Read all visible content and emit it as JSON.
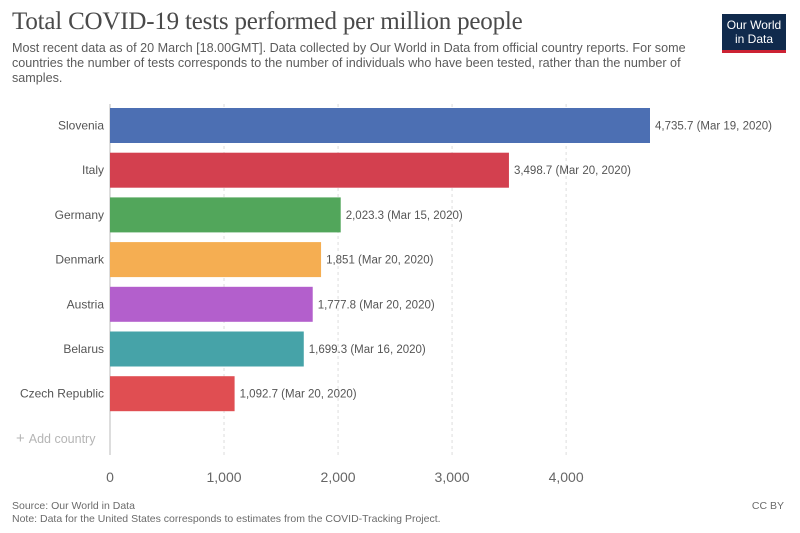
{
  "header": {
    "title": "Total COVID-19 tests performed per million people",
    "subtitle": "Most recent data as of 20 March [18.00GMT]. Data collected by Our World in Data from official country reports. For some countries the number of tests corresponds to the number of individuals who have been tested, rather than the number of samples."
  },
  "logo": {
    "line1": "Our World",
    "line2": "in Data"
  },
  "controls": {
    "add_country": "Add country"
  },
  "footer": {
    "source": "Source: Our World in Data",
    "note": "Note: Data for the United States corresponds to estimates from the COVID-Tracking Project.",
    "license": "CC BY"
  },
  "chart_data": {
    "type": "bar",
    "orientation": "horizontal",
    "title": "Total COVID-19 tests performed per million people",
    "xlabel": "",
    "ylabel": "",
    "categories": [
      "Slovenia",
      "Italy",
      "Germany",
      "Denmark",
      "Austria",
      "Belarus",
      "Czech Republic"
    ],
    "values": [
      4735.7,
      3498.7,
      2023.3,
      1851,
      1777.8,
      1699.3,
      1092.7
    ],
    "data_labels": [
      "4,735.7 (Mar 19, 2020)",
      "3,498.7 (Mar 20, 2020)",
      "2,023.3 (Mar 15, 2020)",
      "1,851 (Mar 20, 2020)",
      "1,777.8 (Mar 20, 2020)",
      "1,699.3 (Mar 16, 2020)",
      "1,092.7 (Mar 20, 2020)"
    ],
    "colors": [
      "#4c6fb3",
      "#d3404f",
      "#52a65b",
      "#f5ae52",
      "#b35fcc",
      "#46a3a8",
      "#e04e52"
    ],
    "xlim": [
      0,
      4735.7
    ],
    "xticks": [
      0,
      1000,
      2000,
      3000,
      4000
    ],
    "xtick_labels": [
      "0",
      "1,000",
      "2,000",
      "3,000",
      "4,000"
    ],
    "grid": true
  }
}
